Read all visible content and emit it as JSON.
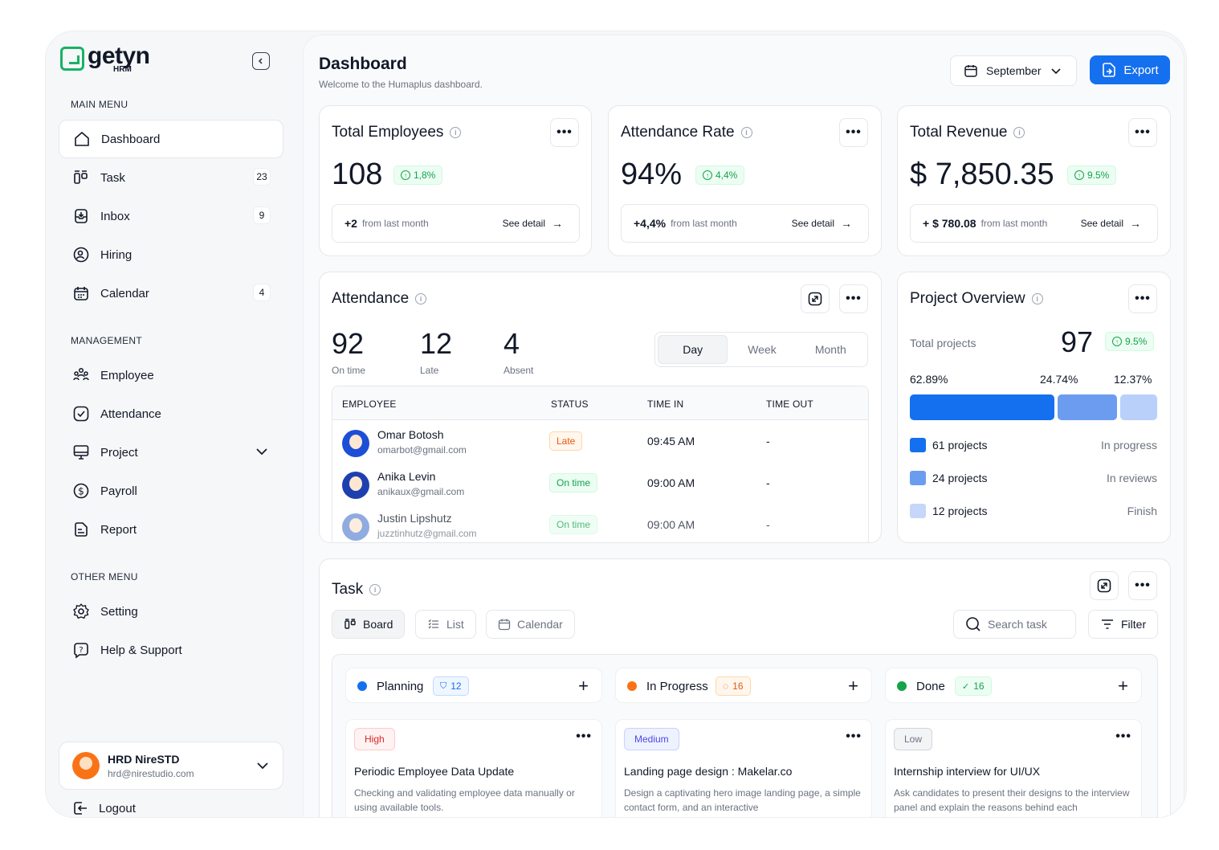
{
  "brand": {
    "name": "getyn",
    "sub": "HRM"
  },
  "sidebar": {
    "main_menu_label": "MAIN MENU",
    "main_items": [
      {
        "label": "Dashboard",
        "badge": ""
      },
      {
        "label": "Task",
        "badge": "23"
      },
      {
        "label": "Inbox",
        "badge": "9"
      },
      {
        "label": "Hiring",
        "badge": ""
      },
      {
        "label": "Calendar",
        "badge": "4"
      }
    ],
    "management_label": "MANAGEMENT",
    "management_items": [
      {
        "label": "Employee"
      },
      {
        "label": "Attendance"
      },
      {
        "label": "Project"
      },
      {
        "label": "Payroll"
      },
      {
        "label": "Report"
      }
    ],
    "other_menu_label": "OTHER MENU",
    "other_items": [
      {
        "label": "Setting"
      },
      {
        "label": "Help & Support"
      }
    ],
    "user": {
      "name": "HRD NireSTD",
      "email": "hrd@nirestudio.com"
    },
    "logout_label": "Logout"
  },
  "header": {
    "title": "Dashboard",
    "subtitle": "Welcome to the Humaplus dashboard.",
    "month": "September",
    "export_label": "Export"
  },
  "stats": [
    {
      "title": "Total Employees",
      "value": "108",
      "change": "1,8%",
      "delta": "+2",
      "delta_text": "from last month",
      "detail": "See detail"
    },
    {
      "title": "Attendance Rate",
      "value": "94%",
      "change": "4,4%",
      "delta": "+4,4%",
      "delta_text": "from last month",
      "detail": "See detail"
    },
    {
      "title": "Total Revenue",
      "value": "$ 7,850.35",
      "change": "9.5%",
      "delta": "+ $ 780.08",
      "delta_text": "from last month",
      "detail": "See detail"
    }
  ],
  "attendance": {
    "title": "Attendance",
    "on_time": "92",
    "on_time_label": "On time",
    "late": "12",
    "late_label": "Late",
    "absent": "4",
    "absent_label": "Absent",
    "tabs": [
      "Day",
      "Week",
      "Month"
    ],
    "columns": [
      "EMPLOYEE",
      "STATUS",
      "TIME IN",
      "TIME OUT"
    ],
    "rows": [
      {
        "name": "Omar Botosh",
        "email": "omarbot@gmail.com",
        "status": "Late",
        "time_in": "09:45 AM",
        "time_out": "-"
      },
      {
        "name": "Anika Levin",
        "email": "anikaux@gmail.com",
        "status": "On time",
        "time_in": "09:00 AM",
        "time_out": "-"
      },
      {
        "name": "Justin Lipshutz",
        "email": "juzztinhutz@gmail.com",
        "status": "On time",
        "time_in": "09:00 AM",
        "time_out": "-"
      }
    ]
  },
  "project": {
    "title": "Project Overview",
    "total_label": "Total projects",
    "total": "97",
    "change": "9.5%",
    "shares": [
      {
        "pct": "62.89%",
        "value": 62.89,
        "color": "#1570ef"
      },
      {
        "pct": "24.74%",
        "value": 24.74,
        "color": "#6b9cf0"
      },
      {
        "pct": "12.37%",
        "value": 12.37,
        "color": "#b9d0fb"
      }
    ],
    "legend": [
      {
        "label": "61 projects",
        "status": "In progress",
        "color": "#1570ef"
      },
      {
        "label": "24 projects",
        "status": "In reviews",
        "color": "#6b9cf0"
      },
      {
        "label": "12 projects",
        "status": "Finish",
        "color": "#c7d7fb"
      }
    ]
  },
  "task": {
    "title": "Task",
    "views": [
      "Board",
      "List",
      "Calendar"
    ],
    "search_placeholder": "Search task",
    "filter_label": "Filter",
    "columns": [
      {
        "title": "Planning",
        "count": "12",
        "color": "#1570ef"
      },
      {
        "title": "In Progress",
        "count": "16",
        "color": "#f97316"
      },
      {
        "title": "Done",
        "count": "16",
        "color": "#16a34a"
      }
    ],
    "cards": [
      {
        "priority": "High",
        "title": "Periodic Employee Data Update",
        "desc": "Checking and validating employee data manually or using available tools."
      },
      {
        "priority": "Medium",
        "title": "Landing page design : Makelar.co",
        "desc": "Design a captivating hero image landing page, a simple contact form, and an interactive"
      },
      {
        "priority": "Low",
        "title": "Internship interview for UI/UX",
        "desc": "Ask candidates to present their designs to the interview panel and explain the reasons behind each"
      }
    ]
  }
}
